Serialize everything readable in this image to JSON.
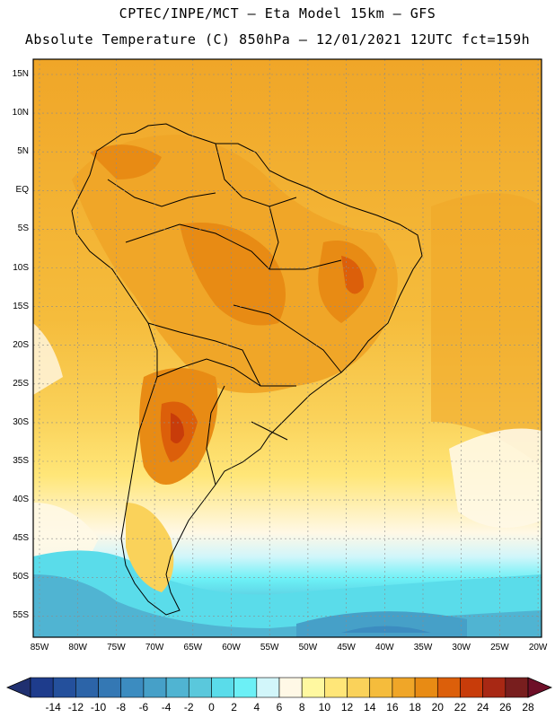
{
  "header": {
    "line1": "CPTEC/INPE/MCT –  Eta Model 15km – GFS",
    "line2": "Absolute Temperature (C) 850hPa – 12/01/2021 12UTC fct=159h"
  },
  "map": {
    "lat_labels": [
      "15N",
      "10N",
      "5N",
      "EQ",
      "5S",
      "10S",
      "15S",
      "20S",
      "25S",
      "30S",
      "35S",
      "40S",
      "45S",
      "50S",
      "55S"
    ],
    "lon_labels": [
      "85W",
      "80W",
      "75W",
      "70W",
      "65W",
      "60W",
      "55W",
      "50W",
      "45W",
      "40W",
      "35W",
      "30W",
      "25W",
      "20W"
    ]
  },
  "colorbar": {
    "labels": [
      "-14",
      "-12",
      "-10",
      "-8",
      "-6",
      "-4",
      "-2",
      "0",
      "2",
      "4",
      "6",
      "8",
      "10",
      "12",
      "14",
      "16",
      "18",
      "20",
      "22",
      "24",
      "26",
      "28"
    ],
    "colors": [
      "#1e3c8c",
      "#24509c",
      "#2c64a8",
      "#3478b4",
      "#3c8cc0",
      "#46a0c8",
      "#50b4d2",
      "#5ac8dc",
      "#5adcea",
      "#6cf0f6",
      "#d2f6fa",
      "#fff8e6",
      "#fff8a0",
      "#ffe678",
      "#fad25a",
      "#f5bc3c",
      "#f0a628",
      "#e88b14",
      "#dc5f0a",
      "#c83c0a",
      "#a82814",
      "#781e1e"
    ]
  }
}
